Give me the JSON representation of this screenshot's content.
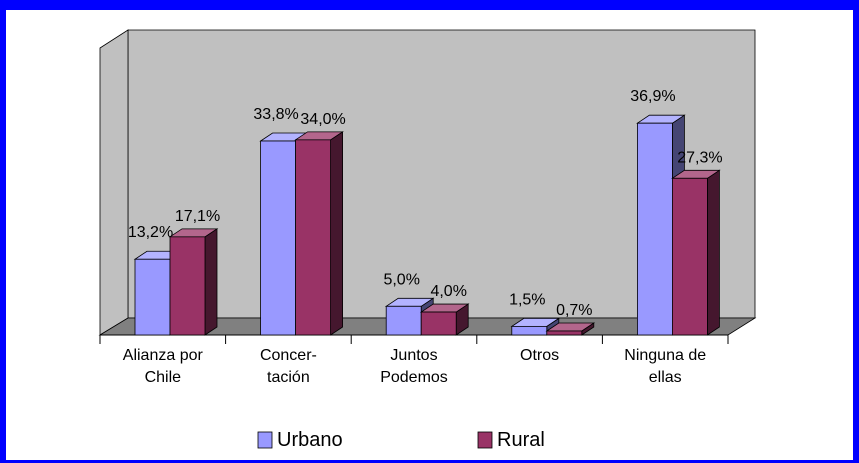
{
  "chart_data": {
    "type": "bar3d",
    "categories": [
      "Alianza por\nChile",
      "Concer-\ntación",
      "Juntos\nPodemos",
      "Otros",
      "Ninguna de\nellas"
    ],
    "series": [
      {
        "name": "Urbano",
        "color": "#9999ff",
        "values": [
          13.2,
          33.8,
          5.0,
          1.5,
          36.9
        ],
        "value_labels": [
          "13,2%",
          "33,8%",
          "5,0%",
          "1,5%",
          "36,9%"
        ]
      },
      {
        "name": "Rural",
        "color": "#993366",
        "values": [
          17.1,
          34.0,
          4.0,
          0.7,
          27.3
        ],
        "value_labels": [
          "17,1%",
          "34,0%",
          "4,0%",
          "0,7%",
          "27,3%"
        ]
      }
    ],
    "ylim": [
      0,
      50
    ],
    "legend": "bottom"
  }
}
